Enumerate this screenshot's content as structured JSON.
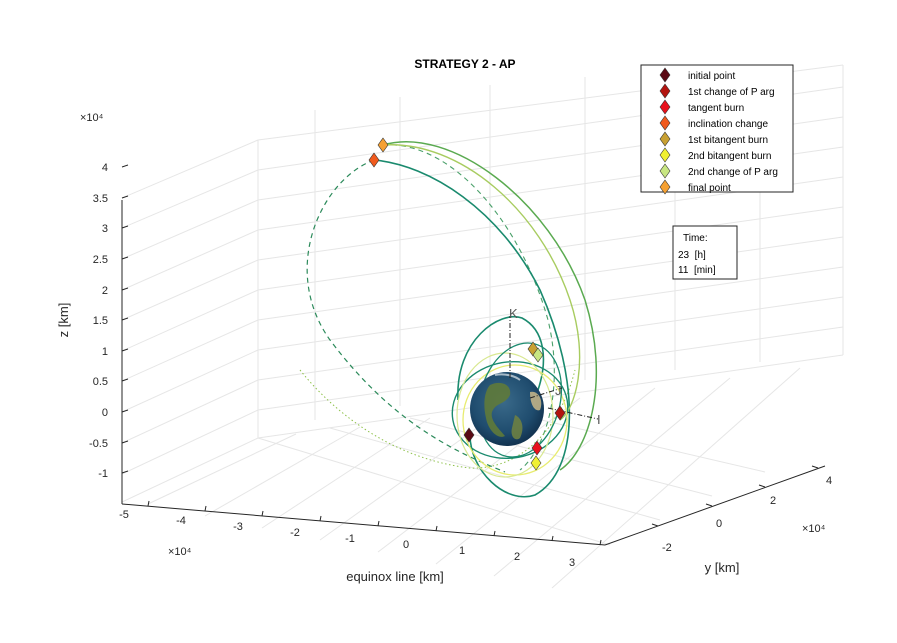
{
  "chart_data": {
    "type": "3d-line",
    "title": "STRATEGY 2 - AP",
    "xlabel": "equinox line [km]",
    "ylabel": "y [km]",
    "zlabel": "z [km]",
    "x_exponent": "×10⁴",
    "y_exponent": "×10⁴",
    "z_exponent": "×10⁴",
    "x_ticks": [
      "-5",
      "-4",
      "-3",
      "-2",
      "-1",
      "0",
      "1",
      "2",
      "3"
    ],
    "y_ticks": [
      "-2",
      "0",
      "2",
      "4"
    ],
    "z_ticks": [
      "-1",
      "-0.5",
      "0",
      "0.5",
      "1",
      "1.5",
      "2",
      "2.5",
      "3",
      "3.5",
      "4"
    ],
    "xlim": [
      -5,
      3.5
    ],
    "ylim": [
      -3,
      4.5
    ],
    "zlim": [
      -1.2,
      4.2
    ],
    "grid": true,
    "legend_position": "top-right",
    "legend": [
      {
        "label": "initial point",
        "color": "#5a0a14"
      },
      {
        "label": "1st change of P arg",
        "color": "#b3140f"
      },
      {
        "label": "tangent burn",
        "color": "#e8111c"
      },
      {
        "label": "inclination change",
        "color": "#f05a1e"
      },
      {
        "label": "1st bitangent burn",
        "color": "#c8a032"
      },
      {
        "label": "2nd bitangent burn",
        "color": "#f0f032"
      },
      {
        "label": "2nd change of P arg",
        "color": "#c8e682"
      },
      {
        "label": "final point",
        "color": "#f5a032"
      }
    ],
    "time_box": {
      "header": "Time:",
      "hours_line": "23  [h]",
      "minutes_line": "11  [min]"
    },
    "frame_labels": [
      "K",
      "J",
      "I"
    ],
    "orbit_colors": {
      "main": "#1a8a6e",
      "transfer": "#4aa06a",
      "light": "#d8e890",
      "yellow": "#e8ec70"
    }
  }
}
